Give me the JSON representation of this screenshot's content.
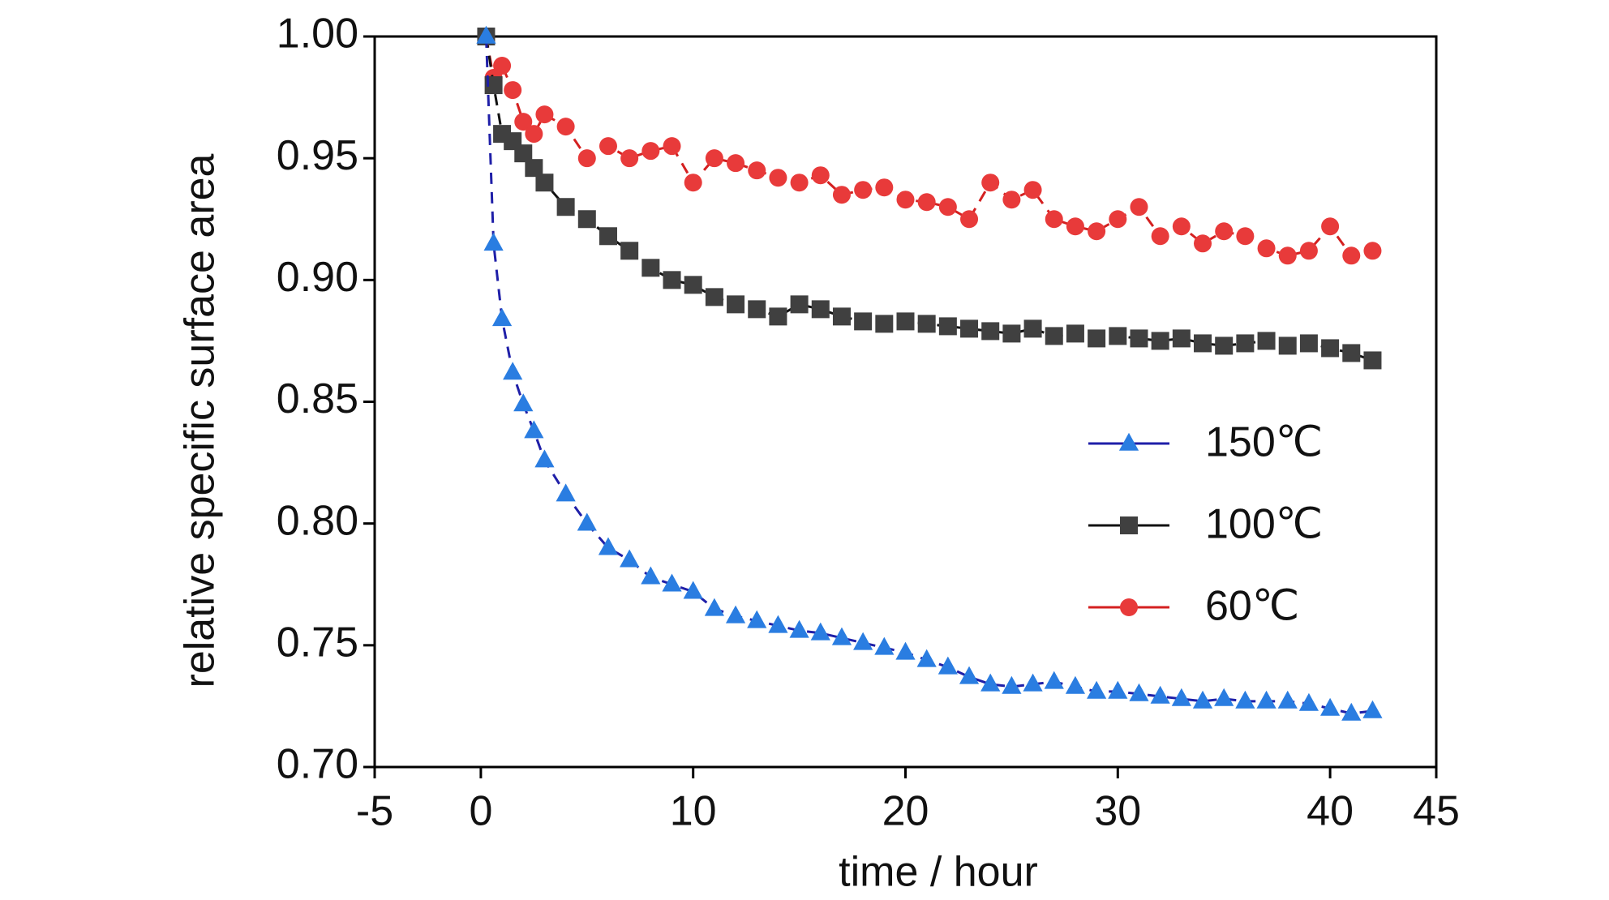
{
  "chart_data": {
    "type": "line",
    "x_label": "time / hour",
    "y_label": "relative specific surface area",
    "xlim": [
      -5,
      45
    ],
    "xticks": [
      -5,
      0,
      10,
      20,
      30,
      40,
      45
    ],
    "ylim": [
      0.7,
      1.0
    ],
    "yticks": [
      {
        "value": 0.7,
        "label": "0.70"
      },
      0.75,
      {
        "value": 0.8,
        "label": "0.80"
      },
      0.85,
      {
        "value": 0.9,
        "label": "0.90"
      },
      0.95,
      {
        "value": 1.0,
        "label": "1.00"
      }
    ],
    "legend_position": "right",
    "x": [
      0.25,
      0.6,
      1,
      1.5,
      2,
      2.5,
      3,
      4,
      5,
      6,
      7,
      8,
      9,
      10,
      11,
      12,
      13,
      14,
      15,
      16,
      17,
      18,
      19,
      20,
      21,
      22,
      23,
      24,
      25,
      26,
      27,
      28,
      29,
      30,
      31,
      32,
      33,
      34,
      35,
      36,
      37,
      38,
      39,
      40,
      41,
      42
    ],
    "series": [
      {
        "name": "150℃",
        "color": "#2a7de1",
        "line_color": "#1f1fa8",
        "marker": "triangle",
        "values": [
          1.0,
          0.915,
          0.884,
          0.862,
          0.849,
          0.838,
          0.826,
          0.812,
          0.8,
          0.79,
          0.785,
          0.778,
          0.775,
          0.772,
          0.765,
          0.762,
          0.76,
          0.758,
          0.756,
          0.755,
          0.753,
          0.751,
          0.749,
          0.747,
          0.744,
          0.741,
          0.737,
          0.734,
          0.733,
          0.734,
          0.735,
          0.733,
          0.731,
          0.731,
          0.73,
          0.729,
          0.728,
          0.727,
          0.728,
          0.727,
          0.727,
          0.727,
          0.726,
          0.724,
          0.722,
          0.723
        ]
      },
      {
        "name": "100℃",
        "color": "#404040",
        "line_color": "#111111",
        "marker": "square",
        "values": [
          1.0,
          0.98,
          0.96,
          0.957,
          0.952,
          0.946,
          0.94,
          0.93,
          0.925,
          0.918,
          0.912,
          0.905,
          0.9,
          0.898,
          0.893,
          0.89,
          0.888,
          0.885,
          0.89,
          0.888,
          0.885,
          0.883,
          0.882,
          0.883,
          0.882,
          0.881,
          0.88,
          0.879,
          0.878,
          0.88,
          0.877,
          0.878,
          0.876,
          0.877,
          0.876,
          0.875,
          0.876,
          0.874,
          0.873,
          0.874,
          0.875,
          0.873,
          0.874,
          0.872,
          0.87,
          0.867
        ]
      },
      {
        "name": "60℃",
        "color": "#e83a3a",
        "line_color": "#d42020",
        "marker": "circle",
        "values": [
          1.0,
          0.983,
          0.988,
          0.978,
          0.965,
          0.96,
          0.968,
          0.963,
          0.95,
          0.955,
          0.95,
          0.953,
          0.955,
          0.94,
          0.95,
          0.948,
          0.945,
          0.942,
          0.94,
          0.943,
          0.935,
          0.937,
          0.938,
          0.933,
          0.932,
          0.93,
          0.925,
          0.94,
          0.933,
          0.937,
          0.925,
          0.922,
          0.92,
          0.925,
          0.93,
          0.918,
          0.922,
          0.915,
          0.92,
          0.918,
          0.913,
          0.91,
          0.912,
          0.922,
          0.91,
          0.912
        ]
      }
    ]
  }
}
